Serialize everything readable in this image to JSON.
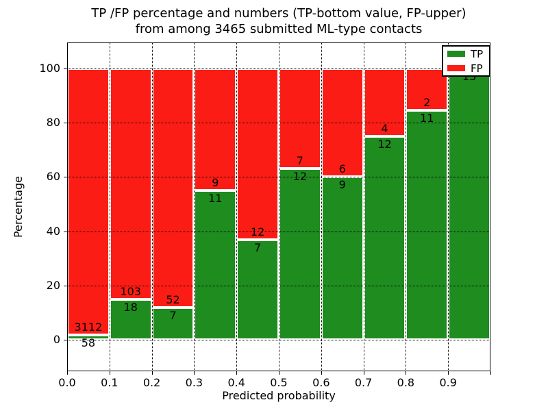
{
  "title": {
    "line1": "TP /FP percentage and numbers (TP-bottom value, FP-upper)",
    "line2": "from among 3465 submitted ML-type contacts"
  },
  "chart_data": {
    "type": "bar",
    "subtype": "stacked-percentage-histogram",
    "title": "TP /FP percentage and numbers (TP-bottom value, FP-upper)\nfrom among 3465 submitted ML-type contacts",
    "xlabel": "Predicted probability",
    "ylabel": "Percentage",
    "total_contacts": 3465,
    "bin_edges": [
      0.0,
      0.1,
      0.2,
      0.3,
      0.4,
      0.5,
      0.6,
      0.7,
      0.8,
      0.9,
      1.0
    ],
    "x_tick_labels": [
      "0.0",
      "0.1",
      "0.2",
      "0.3",
      "0.4",
      "0.5",
      "0.6",
      "0.7",
      "0.8",
      "0.9"
    ],
    "y_tick_values": [
      0,
      20,
      40,
      60,
      80,
      100
    ],
    "xlim": [
      0.0,
      1.0
    ],
    "ylim": [
      -12,
      110
    ],
    "grid": "dotted",
    "legend_position": "upper right",
    "bar_edge_color": "#ffffff",
    "series": [
      {
        "name": "TP",
        "color": "#1e8c1e",
        "counts": [
          58,
          18,
          7,
          11,
          7,
          12,
          9,
          12,
          11,
          13
        ]
      },
      {
        "name": "FP",
        "color": "#fb1d15",
        "counts": [
          3112,
          103,
          52,
          9,
          12,
          7,
          6,
          4,
          2,
          0
        ]
      }
    ],
    "tp_percent": [
      1.83,
      14.88,
      11.86,
      55.0,
      36.84,
      63.16,
      60.0,
      75.0,
      84.62,
      100.0
    ]
  }
}
